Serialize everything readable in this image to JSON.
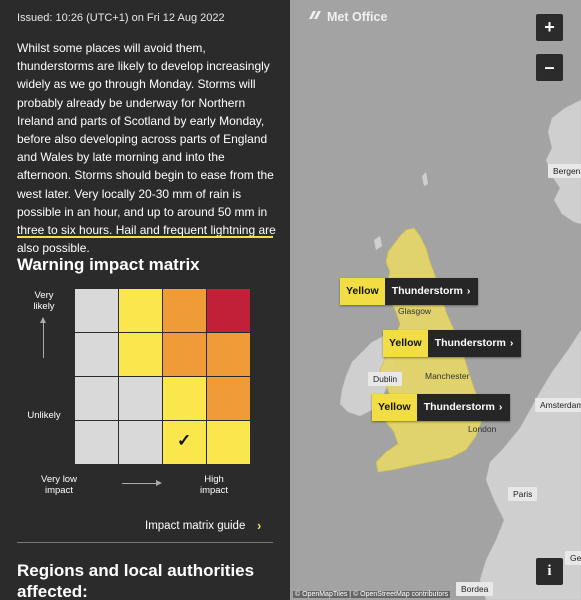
{
  "panel": {
    "issued": "Issued: 10:26 (UTC+1) on Fri 12 Aug 2022",
    "body": "Whilst some places will avoid them, thunderstorms are likely to develop increasingly widely as we go through Monday. Storms will probably already be underway for Northern Ireland and parts of Scotland by early Monday, before also developing across parts of England and Wales by late morning and into the afternoon. Storms should begin to ease from the west later. Very locally 20-30 mm of rain is possible in an hour, and up to around 50 mm in three to six hours. Hail and frequent lightning are also possible.",
    "matrix_title": "Warning impact matrix",
    "matrix": {
      "likelihood_high": "Very likely",
      "likelihood_low": "Unlikely",
      "impact_low": "Very low impact",
      "impact_high": "High impact",
      "rows": [
        [
          "grey",
          "yellow",
          "orange",
          "red"
        ],
        [
          "grey",
          "yellow",
          "orange",
          "orange"
        ],
        [
          "grey",
          "grey",
          "yellow",
          "orange"
        ],
        [
          "grey",
          "grey",
          "yellow",
          "yellow"
        ]
      ],
      "selected": {
        "row": 3,
        "col": 2
      },
      "colors": {
        "grey": "#d9d9d9",
        "yellow": "#f9e74d",
        "orange": "#ee9b38",
        "red": "#c21f38"
      }
    },
    "guide_link": "Impact matrix guide",
    "regions_title": "Regions and local authorities affected:"
  },
  "map": {
    "logo": "Met Office",
    "zoom_in": "+",
    "zoom_out": "–",
    "info": "i",
    "warnings": [
      {
        "level": "Yellow",
        "type": "Thunderstorm"
      },
      {
        "level": "Yellow",
        "type": "Thunderstorm"
      },
      {
        "level": "Yellow",
        "type": "Thunderstorm"
      }
    ],
    "cities": {
      "bergen": "Bergen",
      "glasgow": "Glasgow",
      "dublin": "Dublin",
      "manchester": "Manchester",
      "amsterdam": "Amsterdam",
      "london": "London",
      "paris": "Paris",
      "bordeaux": "Bordea",
      "geneva": "Gen"
    },
    "attribution": "© OpenMapTiles | © OpenStreetMap contributors",
    "accent": "#f2dd45"
  }
}
